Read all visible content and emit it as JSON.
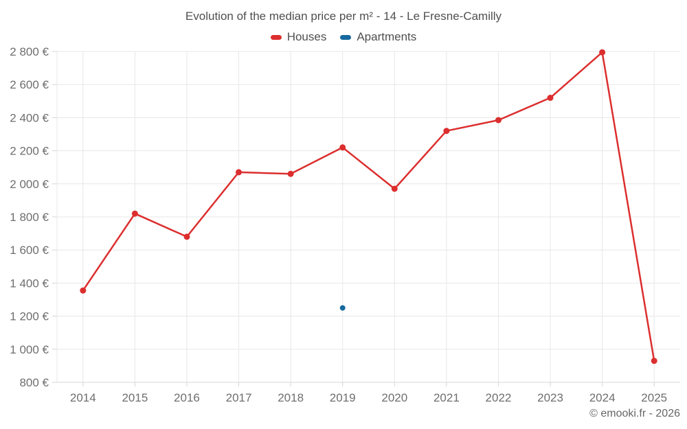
{
  "title": "Evolution of the median price per m² - 14 - Le Fresne-Camilly",
  "credit": "© emooki.fr - 2026",
  "legend": {
    "items": [
      {
        "label": "Houses",
        "color": "#dc2e2e"
      },
      {
        "label": "Apartments",
        "color": "#17699f"
      }
    ]
  },
  "colors": {
    "houses": "#dc2e2e",
    "apartments": "#17699f",
    "grid_line": "#e7e7e7",
    "axis_line": "#d4d4d4",
    "title_text": "#4f4f4f",
    "axis_text": "#6e6e6e",
    "credit_text": "#666666"
  },
  "chart_data": {
    "type": "line",
    "title": "Evolution of the median price per m² - 14 - Le Fresne-Camilly",
    "xlabel": "",
    "ylabel": "",
    "x": [
      2014,
      2015,
      2016,
      2017,
      2018,
      2019,
      2020,
      2021,
      2022,
      2023,
      2024,
      2025
    ],
    "series": [
      {
        "name": "Houses",
        "color": "#dc2e2e",
        "marker_radius": 4.5,
        "line_width": 2.5,
        "values": [
          1355,
          1820,
          1680,
          2070,
          2060,
          2220,
          1970,
          2320,
          2385,
          2520,
          2795,
          930
        ]
      },
      {
        "name": "Apartments",
        "color": "#17699f",
        "marker_radius": 4,
        "line_width": 2.5,
        "values": [
          null,
          null,
          null,
          null,
          null,
          1250,
          null,
          null,
          null,
          null,
          null,
          null
        ]
      }
    ],
    "ylim": [
      800,
      2800
    ],
    "ytick_step": 200,
    "ytick_suffix": " €",
    "grid": true,
    "legend_position": "top"
  }
}
